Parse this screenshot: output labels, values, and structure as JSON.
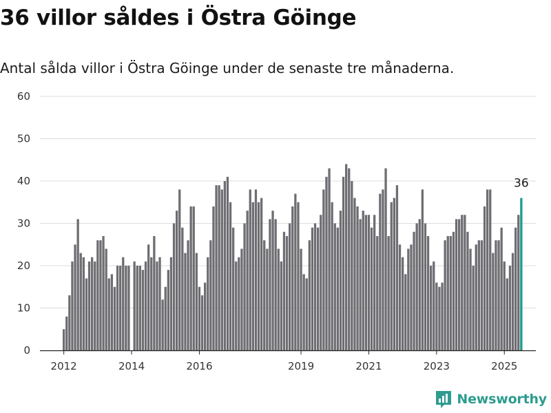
{
  "title": "36 villor såldes i Östra Göinge",
  "subtitle": "Antal sålda villor i Östra Göinge under de senaste tre månaderna.",
  "brand": {
    "name": "Newsworthy",
    "icon": "newsworthy-logo-icon"
  },
  "colors": {
    "bar": "#6e6d72",
    "highlight": "#1a9c8f",
    "grid": "#dcdcdc",
    "axis": "#222222",
    "brand": "#2e9c8f"
  },
  "chart_data": {
    "type": "bar",
    "title": "",
    "xlabel": "",
    "ylabel": "",
    "ylim": [
      0,
      60
    ],
    "yticks": [
      0,
      10,
      20,
      30,
      40,
      50,
      60
    ],
    "xticks": [
      "2012",
      "2014",
      "2016",
      "2019",
      "2021",
      "2023",
      "2025"
    ],
    "grid": true,
    "legend": "none",
    "annotation": {
      "label": "36",
      "series_index": -1
    },
    "values": [
      5,
      8,
      13,
      21,
      25,
      31,
      23,
      22,
      17,
      21,
      22,
      21,
      26,
      26,
      27,
      24,
      17,
      18,
      15,
      20,
      20,
      22,
      20,
      20,
      0,
      21,
      20,
      20,
      19,
      21,
      25,
      22,
      27,
      21,
      22,
      12,
      15,
      19,
      22,
      30,
      33,
      38,
      29,
      23,
      26,
      34,
      34,
      23,
      15,
      13,
      16,
      22,
      26,
      34,
      39,
      39,
      38,
      40,
      41,
      35,
      29,
      21,
      22,
      24,
      30,
      33,
      38,
      35,
      38,
      35,
      36,
      26,
      24,
      31,
      33,
      31,
      24,
      21,
      28,
      27,
      30,
      34,
      37,
      35,
      24,
      18,
      17,
      26,
      29,
      30,
      29,
      32,
      38,
      41,
      43,
      35,
      30,
      29,
      33,
      41,
      44,
      43,
      40,
      36,
      34,
      31,
      33,
      32,
      32,
      29,
      32,
      27,
      37,
      38,
      43,
      27,
      35,
      36,
      39,
      25,
      22,
      18,
      24,
      25,
      28,
      30,
      31,
      38,
      30,
      27,
      20,
      21,
      16,
      15,
      16,
      26,
      27,
      27,
      28,
      31,
      31,
      32,
      32,
      28,
      24,
      20,
      25,
      26,
      26,
      34,
      38,
      38,
      23,
      26,
      26,
      29,
      21,
      17,
      20,
      23,
      29,
      32,
      36
    ]
  }
}
